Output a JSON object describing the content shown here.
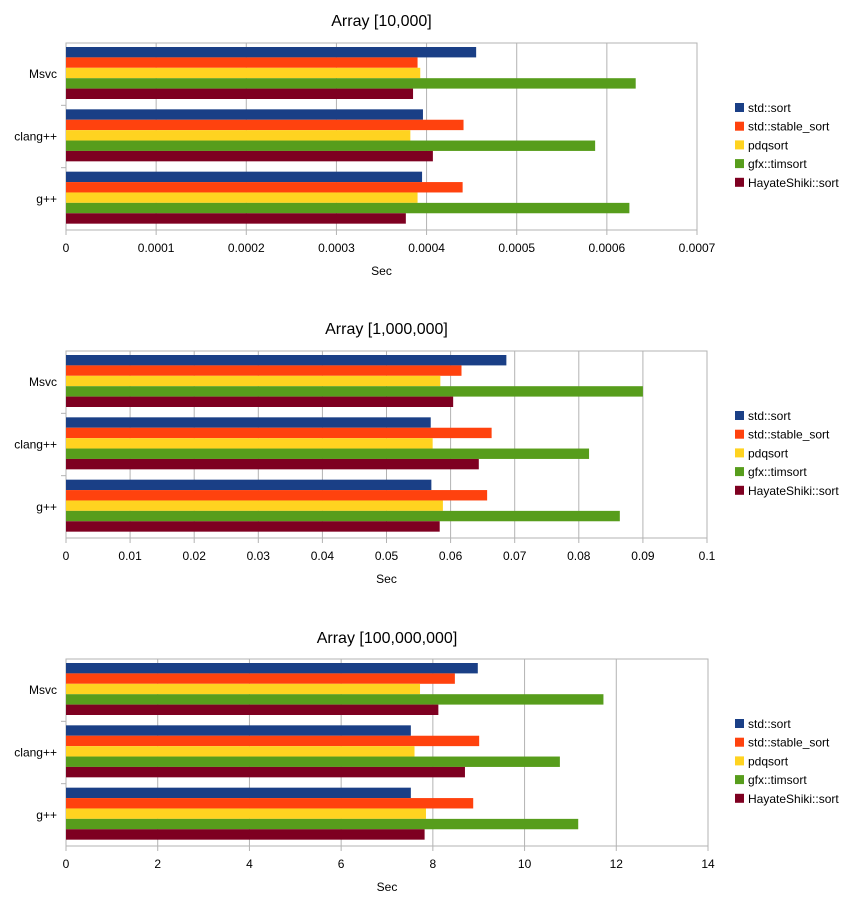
{
  "colors": {
    "std_sort": "#1a3f86",
    "std_stable_sort": "#ff420e",
    "pdqsort": "#ffd320",
    "gfx_timsort": "#579d1c",
    "hayateshiki_sort": "#7e0021",
    "grid": "#b3b3b3"
  },
  "chart_data": [
    {
      "type": "bar",
      "orientation": "horizontal",
      "title": "Array [10,000]",
      "xlabel": "Sec",
      "ylabel": "",
      "xlim": [
        0,
        0.0007
      ],
      "x_ticks": [
        "0",
        "0.0001",
        "0.0002",
        "0.0003",
        "0.0004",
        "0.0005",
        "0.0006",
        "0.0007"
      ],
      "categories": [
        "Msvc",
        "clang++",
        "g++"
      ],
      "series": [
        {
          "name": "std::sort",
          "values": [
            0.000455,
            0.000396,
            0.000395
          ]
        },
        {
          "name": "std::stable_sort",
          "values": [
            0.00039,
            0.000441,
            0.00044
          ]
        },
        {
          "name": "pdqsort",
          "values": [
            0.000393,
            0.000382,
            0.00039
          ]
        },
        {
          "name": "gfx::timsort",
          "values": [
            0.000632,
            0.000587,
            0.000625
          ]
        },
        {
          "name": "HayateShiki::sort",
          "values": [
            0.000385,
            0.000407,
            0.000377
          ]
        }
      ],
      "legend_position": "right"
    },
    {
      "type": "bar",
      "orientation": "horizontal",
      "title": "Array [1,000,000]",
      "xlabel": "Sec",
      "ylabel": "",
      "xlim": [
        0,
        0.1
      ],
      "x_ticks": [
        "0",
        "0.01",
        "0.02",
        "0.03",
        "0.04",
        "0.05",
        "0.06",
        "0.07",
        "0.08",
        "0.09",
        "0.1"
      ],
      "categories": [
        "Msvc",
        "clang++",
        "g++"
      ],
      "series": [
        {
          "name": "std::sort",
          "values": [
            0.0687,
            0.0569,
            0.057
          ]
        },
        {
          "name": "std::stable_sort",
          "values": [
            0.0617,
            0.0664,
            0.0657
          ]
        },
        {
          "name": "pdqsort",
          "values": [
            0.0584,
            0.0572,
            0.0588
          ]
        },
        {
          "name": "gfx::timsort",
          "values": [
            0.09,
            0.0816,
            0.0864
          ]
        },
        {
          "name": "HayateShiki::sort",
          "values": [
            0.0604,
            0.0644,
            0.0583
          ]
        }
      ],
      "legend_position": "right"
    },
    {
      "type": "bar",
      "orientation": "horizontal",
      "title": "Array [100,000,000]",
      "xlabel": "Sec",
      "ylabel": "",
      "xlim": [
        0,
        14
      ],
      "x_ticks": [
        "0",
        "2",
        "4",
        "6",
        "8",
        "10",
        "12",
        "14"
      ],
      "categories": [
        "Msvc",
        "clang++",
        "g++"
      ],
      "series": [
        {
          "name": "std::sort",
          "values": [
            8.98,
            7.52,
            7.52
          ]
        },
        {
          "name": "std::stable_sort",
          "values": [
            8.48,
            9.01,
            8.88
          ]
        },
        {
          "name": "pdqsort",
          "values": [
            7.72,
            7.6,
            7.85
          ]
        },
        {
          "name": "gfx::timsort",
          "values": [
            11.72,
            10.77,
            11.17
          ]
        },
        {
          "name": "HayateShiki::sort",
          "values": [
            8.12,
            8.7,
            7.82
          ]
        }
      ],
      "legend_position": "right"
    }
  ]
}
